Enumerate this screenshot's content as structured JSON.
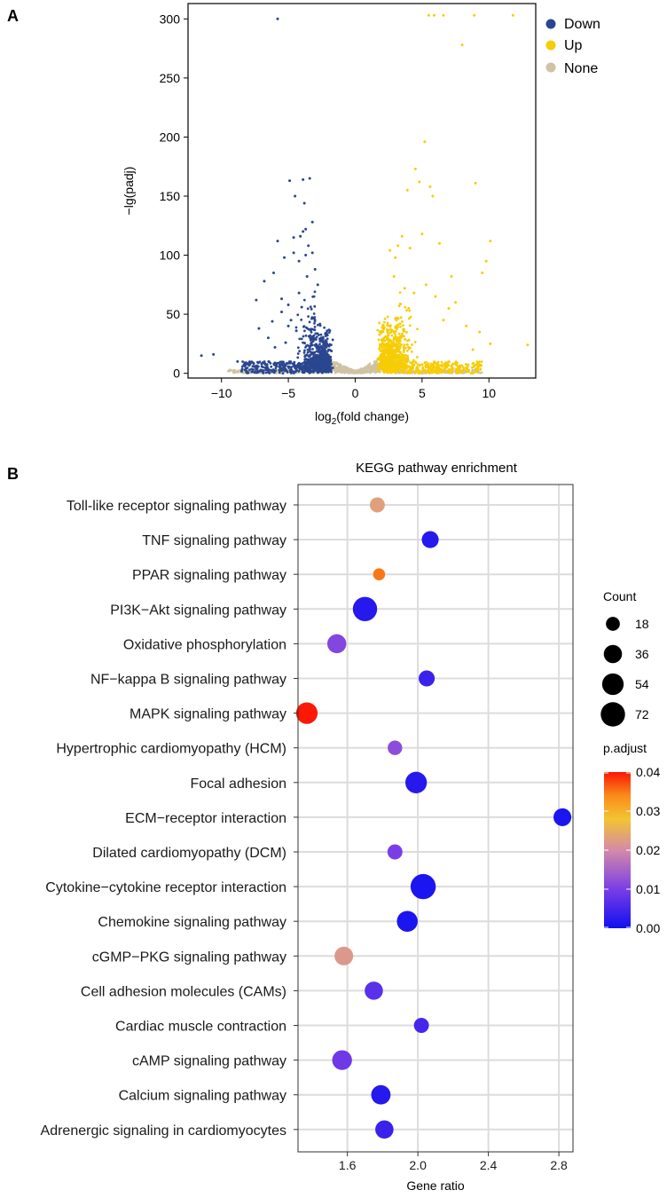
{
  "panel_labels": {
    "a": "A",
    "b": "B"
  },
  "colors": {
    "down": "#2a4690",
    "up": "#f6cd06",
    "none": "#cfc3a4",
    "padj_low": "#1010f0",
    "padj_mid": "#f3c431",
    "padj_high": "#fb1806",
    "grid": "#dcdcdc",
    "panel_bg": "#ffffff"
  },
  "chart_data": [
    {
      "type": "scatter",
      "title": "",
      "xlabel_main": "log",
      "xlabel_sub": "2",
      "xlabel_rest": "(fold change)",
      "ylabel": "−lg(padj)",
      "xlim": [
        -12.5,
        13.5
      ],
      "ylim": [
        -4,
        313
      ],
      "x_ticks": [
        -10,
        -5,
        0,
        5,
        10
      ],
      "x_tick_labels": [
        "−10",
        "−5",
        "0",
        "5",
        "10"
      ],
      "y_ticks": [
        0,
        50,
        100,
        150,
        200,
        250,
        300
      ],
      "y_tick_labels": [
        "0",
        "50",
        "100",
        "150",
        "200",
        "250",
        "300"
      ],
      "legend_position": "right",
      "legend": [
        {
          "key": "down",
          "label": "Down"
        },
        {
          "key": "up",
          "label": "Up"
        },
        {
          "key": "none",
          "label": "None"
        }
      ],
      "series": [
        {
          "name": "Down",
          "points": [
            [
              -5.8,
              300
            ],
            [
              -3.9,
              164
            ],
            [
              -3.4,
              165
            ],
            [
              -4.9,
              163
            ],
            [
              -4.5,
              150
            ],
            [
              -3.8,
              144
            ],
            [
              -3.2,
              128
            ],
            [
              -3.9,
              120
            ],
            [
              -3.7,
              122
            ],
            [
              -4.1,
              116
            ],
            [
              -4.6,
              115
            ],
            [
              -5.8,
              112
            ],
            [
              -3.5,
              108
            ],
            [
              -3.2,
              102
            ],
            [
              -3.7,
              100
            ],
            [
              -4.6,
              102
            ],
            [
              -5.3,
              98
            ],
            [
              -4.2,
              95
            ],
            [
              -6.1,
              85
            ],
            [
              -6.8,
              78
            ],
            [
              -7.4,
              62
            ],
            [
              -5.5,
              63
            ],
            [
              -5.0,
              58
            ],
            [
              -4.0,
              56
            ],
            [
              -6.2,
              44
            ],
            [
              -7.2,
              38
            ],
            [
              -6.5,
              30
            ],
            [
              -11.5,
              15
            ],
            [
              -10.6,
              16
            ],
            [
              -8.8,
              10
            ],
            [
              -8.2,
              7
            ],
            [
              -7.6,
              6
            ],
            [
              -7.0,
              8
            ],
            [
              -5.5,
              52
            ],
            [
              -4.8,
              45
            ],
            [
              -4.2,
              68
            ],
            [
              -3.0,
              88
            ],
            [
              -5.0,
              40
            ],
            [
              -4.4,
              36
            ],
            [
              -6.0,
              22
            ],
            [
              -5.2,
              26
            ],
            [
              -3.6,
              82
            ],
            [
              -2.8,
              75
            ]
          ]
        },
        {
          "name": "Up",
          "points": [
            [
              5.5,
              303
            ],
            [
              5.9,
              303
            ],
            [
              6.6,
              303
            ],
            [
              8.9,
              303
            ],
            [
              11.8,
              303
            ],
            [
              8.0,
              278
            ],
            [
              5.2,
              196
            ],
            [
              4.5,
              173
            ],
            [
              9.0,
              161
            ],
            [
              4.8,
              162
            ],
            [
              5.6,
              158
            ],
            [
              3.9,
              155
            ],
            [
              5.8,
              150
            ],
            [
              10.1,
              112
            ],
            [
              9.8,
              95
            ],
            [
              9.5,
              85
            ],
            [
              7.2,
              82
            ],
            [
              3.5,
              116
            ],
            [
              3.2,
              108
            ],
            [
              4.1,
              106
            ],
            [
              5.0,
              118
            ],
            [
              6.3,
              110
            ],
            [
              2.6,
              104
            ],
            [
              3.0,
              98
            ],
            [
              7.0,
              55
            ],
            [
              7.5,
              60
            ],
            [
              8.3,
              40
            ],
            [
              10.1,
              25
            ],
            [
              12.9,
              24
            ],
            [
              8.8,
              20
            ],
            [
              6.0,
              65
            ],
            [
              4.4,
              68
            ],
            [
              3.7,
              72
            ],
            [
              5.3,
              75
            ],
            [
              2.9,
              82
            ],
            [
              6.6,
              45
            ],
            [
              4.0,
              55
            ],
            [
              9.3,
              35
            ]
          ]
        }
      ]
    },
    {
      "type": "scatter",
      "subtype": "dot-plot",
      "title": "KEGG pathway enrichment",
      "xlabel": "Gene ratio",
      "ylabel": "",
      "xlim": [
        1.32,
        2.88
      ],
      "x_ticks": [
        1.6,
        2.0,
        2.4,
        2.8
      ],
      "x_tick_labels": [
        "1.6",
        "2.0",
        "2.4",
        "2.8"
      ],
      "size_legend": {
        "title": "Count",
        "values": [
          18,
          36,
          54,
          72
        ],
        "labels": [
          "18",
          "36",
          "54",
          "72"
        ]
      },
      "color_legend": {
        "title": "p.adjust",
        "range": [
          0.0,
          0.04
        ],
        "ticks": [
          0.0,
          0.01,
          0.02,
          0.03,
          0.04
        ],
        "labels": [
          "0.00",
          "0.01",
          "0.02",
          "0.03",
          "0.04"
        ]
      },
      "categories": [
        "Toll-like receptor signaling pathway",
        "TNF signaling pathway",
        "PPAR signaling pathway",
        "PI3K−Akt signaling pathway",
        "Oxidative phosphorylation",
        "NF−kappa B signaling pathway",
        "MAPK signaling pathway",
        "Hypertrophic cardiomyopathy (HCM)",
        "Focal adhesion",
        "ECM−receptor interaction",
        "Dilated cardiomyopathy (DCM)",
        "Cytokine−cytokine receptor interaction",
        "Chemokine signaling pathway",
        "cGMP−PKG signaling pathway",
        "Cell adhesion molecules (CAMs)",
        "Cardiac muscle contraction",
        "cAMP signaling pathway",
        "Calcium signaling pathway",
        "Adrenergic signaling in cardiomyocytes"
      ],
      "gene_ratio": [
        1.77,
        2.07,
        1.78,
        1.7,
        1.54,
        2.05,
        1.37,
        1.87,
        1.99,
        2.82,
        1.87,
        2.03,
        1.94,
        1.58,
        1.75,
        2.02,
        1.57,
        1.79,
        1.81
      ],
      "count": [
        22,
        30,
        12,
        72,
        40,
        26,
        54,
        20,
        54,
        34,
        22,
        78,
        50,
        38,
        36,
        22,
        44,
        42,
        36
      ],
      "p_adjust": [
        0.023,
        0.002,
        0.035,
        0.002,
        0.011,
        0.004,
        0.04,
        0.012,
        0.002,
        0.001,
        0.01,
        0.001,
        0.001,
        0.022,
        0.007,
        0.005,
        0.009,
        0.002,
        0.004
      ]
    }
  ]
}
